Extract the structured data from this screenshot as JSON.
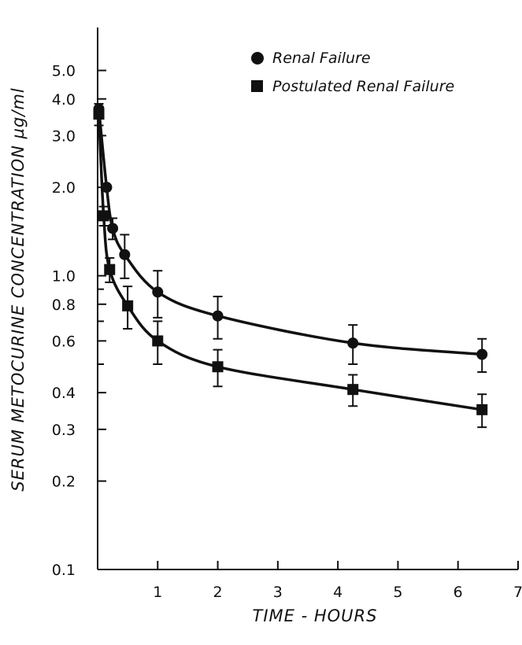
{
  "chart_data": {
    "type": "line",
    "title": "",
    "xlabel": "TIME - HOURS",
    "ylabel": "SERUM METOCURINE CONCENTRATION µg/ml",
    "x_scale": "linear",
    "y_scale": "log",
    "xlim": [
      0,
      7
    ],
    "ylim": [
      0.1,
      7.0
    ],
    "x_ticks": [
      1,
      2,
      3,
      4,
      5,
      6,
      7
    ],
    "x_tick_labels": [
      "1",
      "2",
      "3",
      "4",
      "5",
      "6",
      "7"
    ],
    "y_ticks": [
      0.1,
      0.2,
      0.3,
      0.4,
      0.6,
      0.8,
      1.0,
      2.0,
      3.0,
      4.0,
      5.0
    ],
    "y_tick_labels": [
      "0.1",
      "0.2",
      "0.3",
      "0.4",
      "0.6",
      "0.8",
      "1.0",
      "2.0",
      "3.0",
      "4.0",
      "5.0"
    ],
    "y_minor_ticks": [
      0.5,
      0.7,
      0.9
    ],
    "legend_position": "top-right",
    "grid": false,
    "series": [
      {
        "name": "Renal Failure",
        "marker": "circle",
        "x": [
          0.02,
          0.15,
          0.25,
          0.45,
          1.0,
          2.0,
          4.25,
          6.4
        ],
        "y": [
          3.7,
          2.0,
          1.45,
          1.18,
          0.88,
          0.73,
          0.59,
          0.54
        ],
        "err": [
          0,
          0,
          0.12,
          0.2,
          0.16,
          0.12,
          0.09,
          0.07
        ]
      },
      {
        "name": "Postulated Renal Failure",
        "marker": "square",
        "x": [
          0.02,
          0.1,
          0.2,
          0.5,
          1.0,
          2.0,
          4.25,
          6.4
        ],
        "y": [
          3.55,
          1.6,
          1.05,
          0.79,
          0.6,
          0.49,
          0.41,
          0.35
        ],
        "err": [
          0.3,
          0.12,
          0.1,
          0.13,
          0.1,
          0.07,
          0.05,
          0.045
        ]
      }
    ]
  }
}
